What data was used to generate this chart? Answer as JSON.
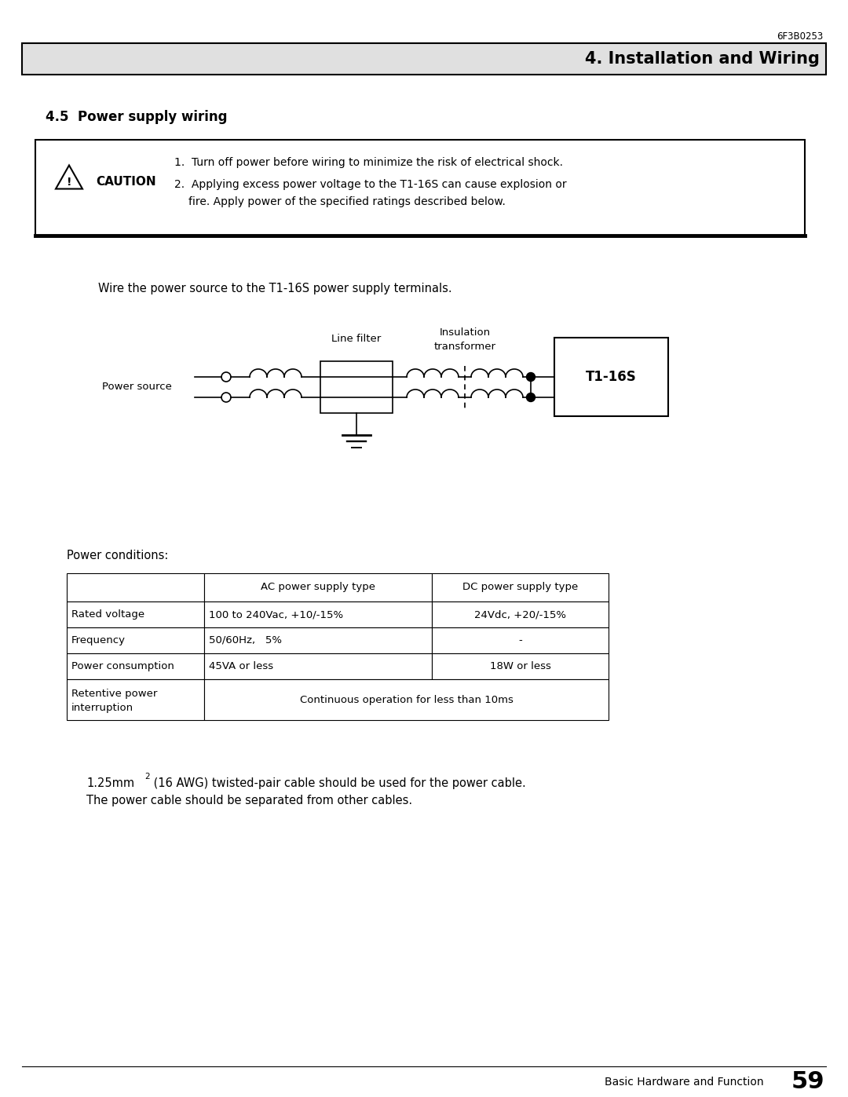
{
  "doc_number": "6F3B0253",
  "section_title": "4. Installation and Wiring",
  "subsection_title": "4.5  Power supply wiring",
  "caution_text_1": "1.  Turn off power before wiring to minimize the risk of electrical shock.",
  "caution_text_2a": "2.  Applying excess power voltage to the T1-16S can cause explosion or",
  "caution_text_2b": "fire. Apply power of the specified ratings described below.",
  "wire_intro": "Wire the power source to the T1-16S power supply terminals.",
  "power_source_label": "Power source",
  "line_filter_label": "Line filter",
  "insulation_label_1": "Insulation",
  "insulation_label_2": "transformer",
  "t1_16s_label": "T1-16S",
  "power_conditions_label": "Power conditions:",
  "table_headers": [
    "",
    "AC power supply type",
    "DC power supply type"
  ],
  "table_rows": [
    [
      "Rated voltage",
      "100 to 240Vac, +10/-15%",
      "24Vdc, +20/-15%"
    ],
    [
      "Frequency",
      "50/60Hz,   5%",
      "-"
    ],
    [
      "Power consumption",
      "45VA or less",
      "18W or less"
    ],
    [
      "Retentive power\ninterruption",
      "Continuous operation for less than 10ms",
      ""
    ]
  ],
  "note_line2": "The power cable should be separated from other cables.",
  "footer_text": "Basic Hardware and Function",
  "page_number": "59",
  "bg_color": "#ffffff",
  "header_bg": "#e0e0e0"
}
